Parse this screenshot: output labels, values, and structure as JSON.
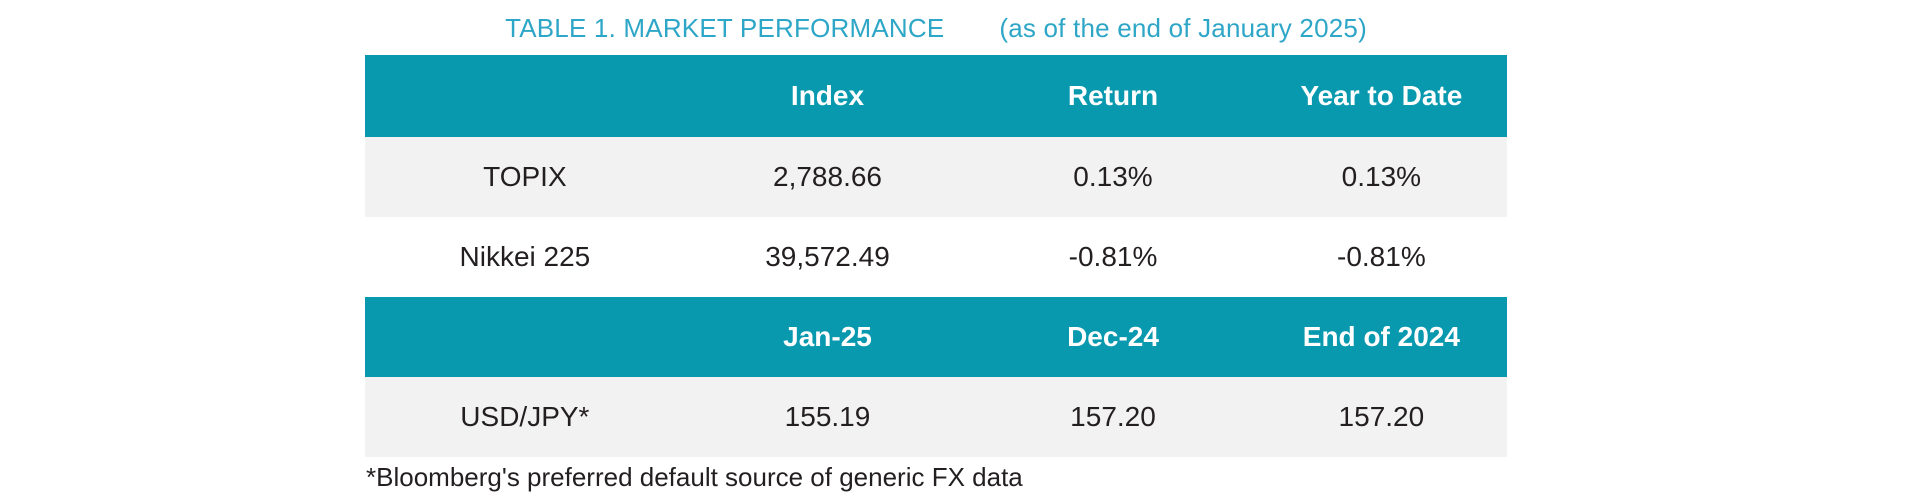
{
  "title": {
    "main": "TABLE 1. MARKET PERFORMANCE",
    "subtitle": "(as of the end of January 2025)"
  },
  "chart_data": {
    "type": "table",
    "tables": [
      {
        "headers": [
          "",
          "Index",
          "Return",
          "Year to Date"
        ],
        "rows": [
          [
            "TOPIX",
            "2,788.66",
            "0.13%",
            "0.13%"
          ],
          [
            "Nikkei 225",
            "39,572.49",
            "-0.81%",
            "-0.81%"
          ]
        ]
      },
      {
        "headers": [
          "",
          "Jan-25",
          "Dec-24",
          "End of 2024"
        ],
        "rows": [
          [
            "USD/JPY*",
            "155.19",
            "157.20",
            "157.20"
          ]
        ]
      }
    ]
  },
  "table1": {
    "header": {
      "col2": "Index",
      "col3": "Return",
      "col4": "Year to Date"
    },
    "rows": [
      {
        "label": "TOPIX",
        "index": "2,788.66",
        "return": "0.13%",
        "ytd": "0.13%"
      },
      {
        "label": "Nikkei 225",
        "index": "39,572.49",
        "return": "-0.81%",
        "ytd": "-0.81%"
      }
    ]
  },
  "table2": {
    "header": {
      "col2": "Jan-25",
      "col3": "Dec-24",
      "col4": "End of 2024"
    },
    "rows": [
      {
        "label": "USD/JPY*",
        "jan25": "155.19",
        "dec24": "157.20",
        "end2024": "157.20"
      }
    ]
  },
  "footnote": "*Bloomberg's preferred default source of generic FX data",
  "colors": {
    "header_teal": "#0899AF",
    "title_teal": "#2EA6C7",
    "row_alt": "#F2F2F2",
    "text_dark": "#231F20",
    "page_bg": "#FFFFFF"
  }
}
